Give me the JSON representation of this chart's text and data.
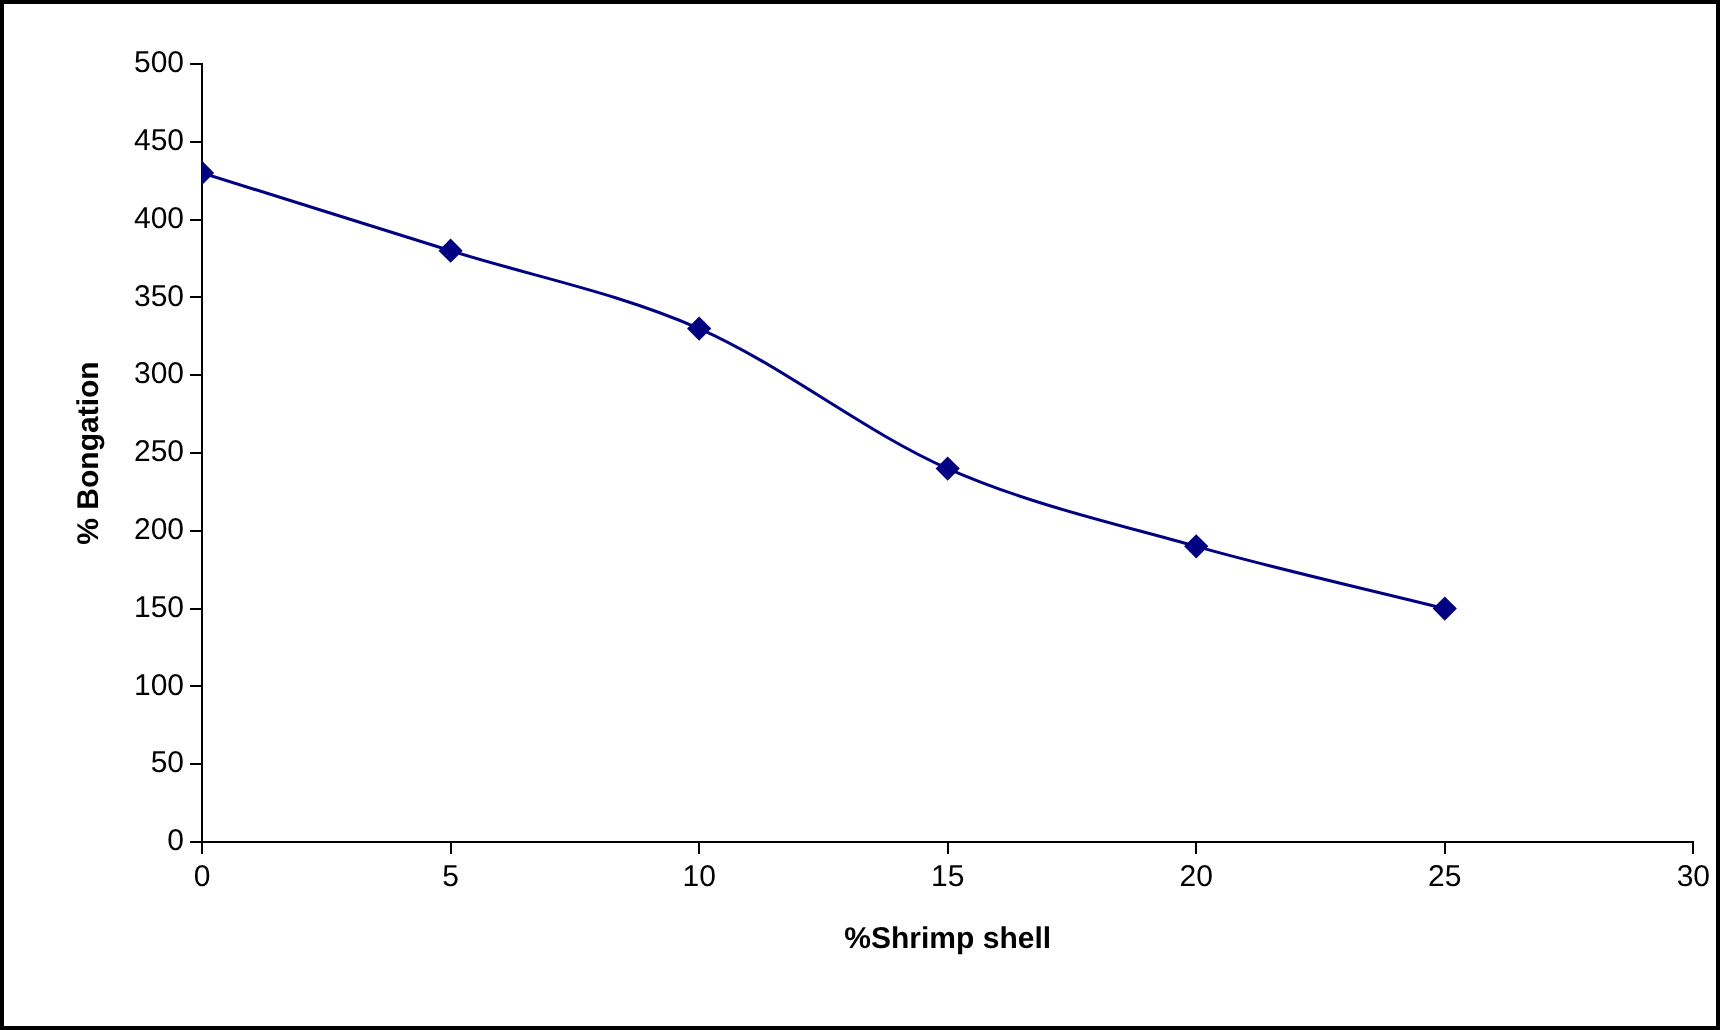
{
  "chart_data": {
    "type": "line",
    "xlabel": "%Shrimp shell",
    "ylabel": "% Bongation",
    "x": [
      0,
      5,
      10,
      15,
      20,
      25
    ],
    "series": [
      {
        "color": "#000080",
        "values": [
          430,
          380,
          330,
          240,
          190,
          150
        ]
      }
    ],
    "xlim": [
      0,
      30
    ],
    "xticks": [
      0,
      5,
      10,
      15,
      20,
      25,
      30
    ],
    "ylim": [
      0,
      500
    ],
    "yticks": [
      0,
      50,
      100,
      150,
      200,
      250,
      300,
      350,
      400,
      450,
      500
    ],
    "grid": false,
    "legend": false,
    "marker": "diamond",
    "line_style": "solid"
  }
}
